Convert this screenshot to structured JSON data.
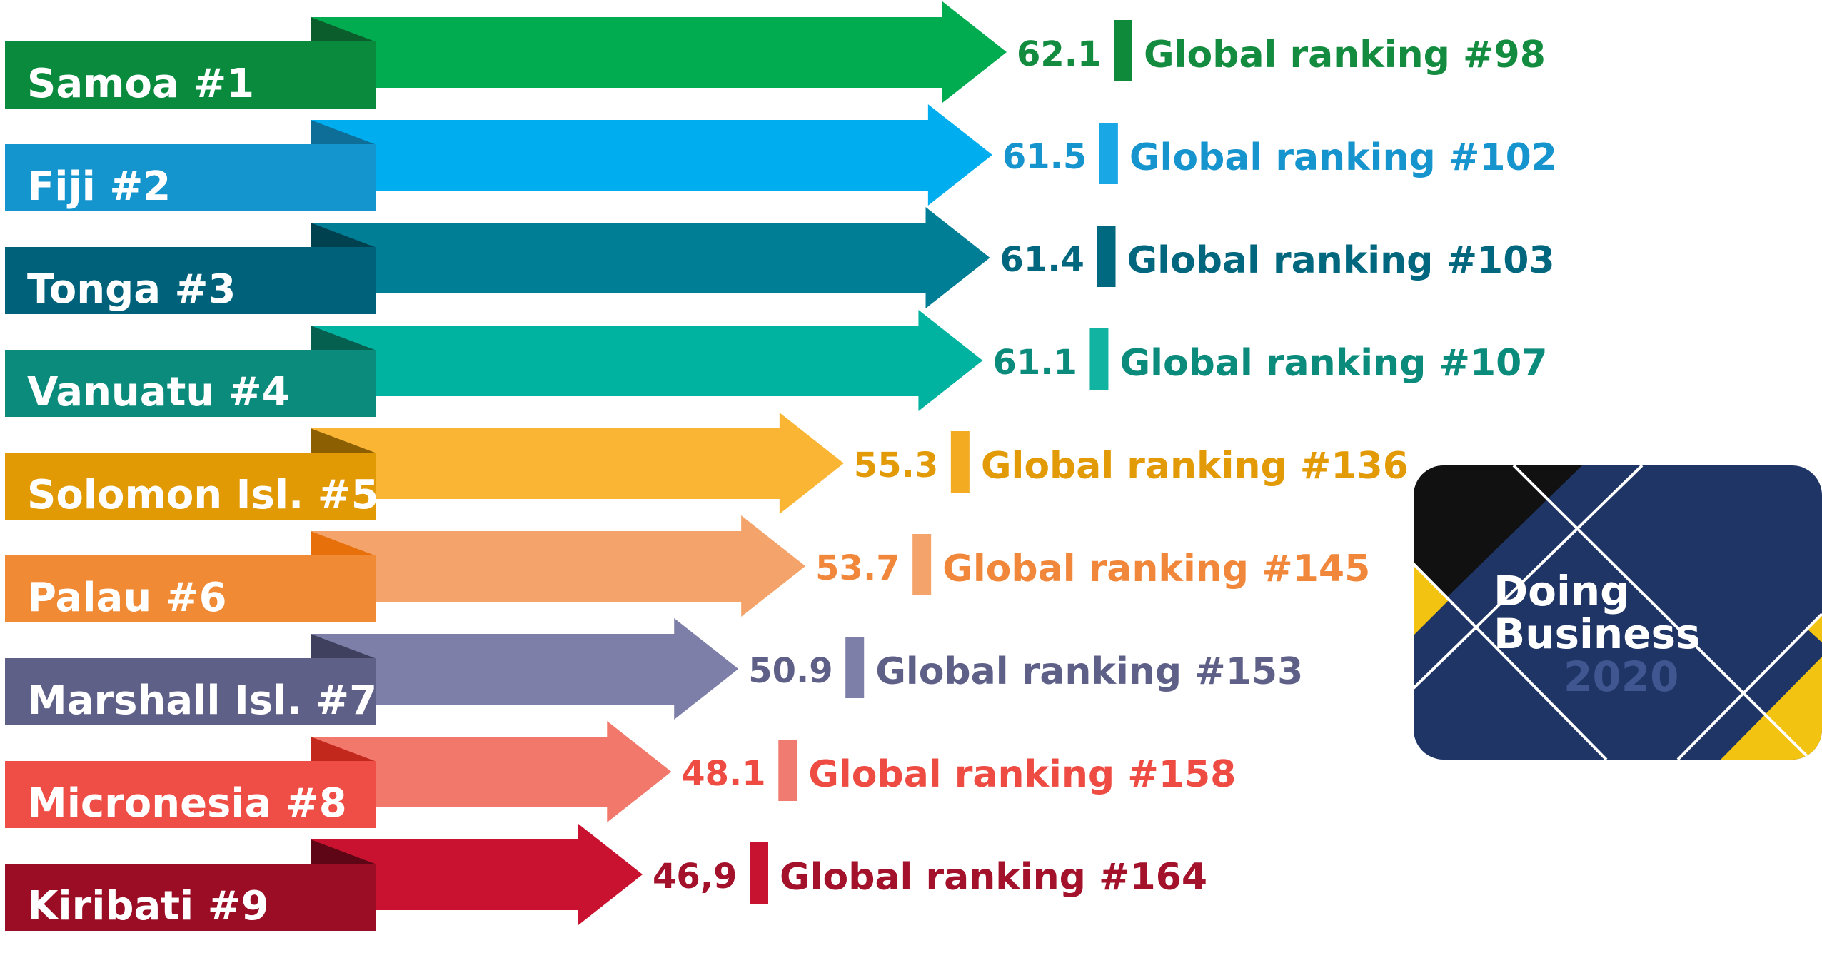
{
  "chart_data": {
    "type": "bar",
    "categories": [
      "Samoa #1",
      "Fiji #2",
      "Tonga #3",
      "Vanuatu #4",
      "Solomon Isl. #5",
      "Palau #6",
      "Marshall Isl. #7",
      "Micronesia #8",
      "Kiribati #9"
    ],
    "values": [
      62.1,
      61.5,
      61.4,
      61.1,
      55.3,
      53.7,
      50.9,
      48.1,
      46.9
    ],
    "value_labels": [
      "62.1",
      "61.5",
      "61.4",
      "61.1",
      "55.3",
      "53.7",
      "50.9",
      "48.1",
      "46,9"
    ],
    "global_rankings": [
      "Global ranking #98",
      "Global ranking #102",
      "Global ranking #103",
      "Global ranking #107",
      "Global ranking #136",
      "Global ranking #145",
      "Global ranking #153",
      "Global ranking #158",
      "Global ranking #164"
    ],
    "colors": [
      {
        "bar": "#00AC4F",
        "tab": "#0A8A3D",
        "fold": "#0B5E2B",
        "text": "#138C3F",
        "marker": "#0E8A3A"
      },
      {
        "bar": "#00AEEF",
        "tab": "#1495CE",
        "fold": "#0F6E97",
        "text": "#1694CE",
        "marker": "#19A7E5"
      },
      {
        "bar": "#007E95",
        "tab": "#00627A",
        "fold": "#00414F",
        "text": "#00677E",
        "marker": "#00697F"
      },
      {
        "bar": "#00B3A0",
        "tab": "#0A8B7B",
        "fold": "#06604F",
        "text": "#0A8B7B",
        "marker": "#12B3A0"
      },
      {
        "bar": "#FBB535",
        "tab": "#E29A04",
        "fold": "#8C6002",
        "text": "#E29A06",
        "marker": "#F3AB22"
      },
      {
        "bar": "#F4A46A",
        "tab": "#F18A35",
        "fold": "#E7700A",
        "text": "#F0873A",
        "marker": "#F4A46A"
      },
      {
        "bar": "#7D7FA8",
        "tab": "#5E6088",
        "fold": "#3E405D",
        "text": "#5E6088",
        "marker": "#7D7FA8"
      },
      {
        "bar": "#F2786B",
        "tab": "#EE4E46",
        "fold": "#C3281C",
        "text": "#EE4B43",
        "marker": "#F07B70"
      },
      {
        "bar": "#C9122F",
        "tab": "#9A0D24",
        "fold": "#5E0616",
        "text": "#A3112B",
        "marker": "#C71230"
      }
    ],
    "title": "",
    "xlabel": "",
    "ylabel": "",
    "xlim": [
      0,
      62.1
    ]
  },
  "logo": {
    "line1": "Doing",
    "line2": "Business",
    "line3": "2020",
    "colors": {
      "background": "#1F3566",
      "black": "#111111",
      "yellow": "#F2C311",
      "line": "#FFFFFF",
      "text": "#FFFFFF",
      "year": "#3F5690"
    }
  }
}
